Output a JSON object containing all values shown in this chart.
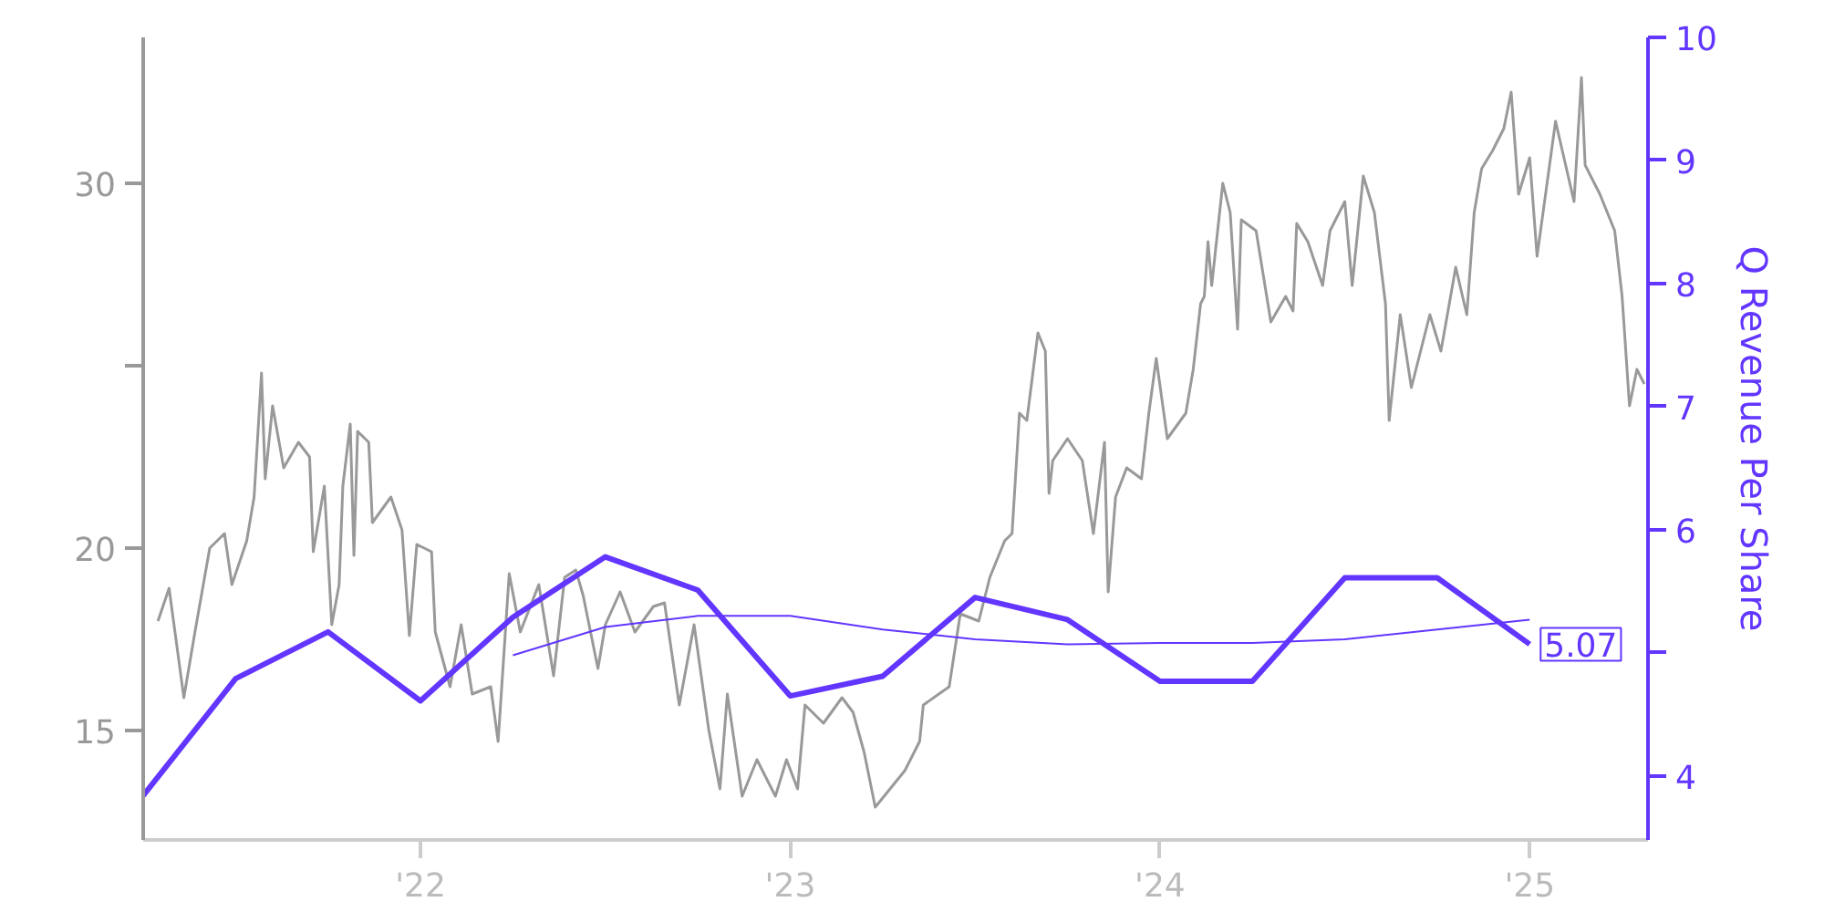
{
  "chart_data": {
    "type": "line",
    "xlim": [
      2021.25,
      2025.32
    ],
    "ylim": [
      12,
      34
    ],
    "y2lim": [
      3.48,
      10
    ],
    "xticks": [
      {
        "value": 2022,
        "label": "'22"
      },
      {
        "value": 2023,
        "label": "'23"
      },
      {
        "value": 2024,
        "label": "'24"
      },
      {
        "value": 2025,
        "label": "'25"
      }
    ],
    "yticks": [
      15,
      20,
      {
        "value": 25,
        "label": null
      },
      30
    ],
    "y2ticks": [
      4,
      {
        "value": 5,
        "label": null
      },
      6,
      7,
      8,
      9,
      10
    ],
    "y2label": "Q Revenue Per Share",
    "series": [
      {
        "color": "#999999",
        "x": [
          2021.29,
          2021.32,
          2021.36,
          2021.39,
          2021.43,
          2021.47,
          2021.49,
          2021.53,
          2021.55,
          2021.57,
          2021.58,
          2021.6,
          2021.63,
          2021.67,
          2021.7,
          2021.71,
          2021.74,
          2021.76,
          2021.78,
          2021.79,
          2021.81,
          2021.82,
          2021.83,
          2021.86,
          2021.87,
          2021.92,
          2021.95,
          2021.97,
          2021.99,
          2022.03,
          2022.04,
          2022.08,
          2022.11,
          2022.14,
          2022.19,
          2022.21,
          2022.24,
          2022.27,
          2022.32,
          2022.36,
          2022.39,
          2022.42,
          2022.44,
          2022.48,
          2022.5,
          2022.54,
          2022.58,
          2022.63,
          2022.66,
          2022.7,
          2022.74,
          2022.78,
          2022.81,
          2022.83,
          2022.87,
          2022.91,
          2022.96,
          2022.99,
          2023.02,
          2023.04,
          2023.09,
          2023.14,
          2023.17,
          2023.2,
          2023.23,
          2023.27,
          2023.31,
          2023.35,
          2023.36,
          2023.43,
          2023.46,
          2023.51,
          2023.54,
          2023.58,
          2023.6,
          2023.62,
          2023.64,
          2023.67,
          2023.69,
          2023.7,
          2023.71,
          2023.75,
          2023.79,
          2023.82,
          2023.85,
          2023.86,
          2023.88,
          2023.91,
          2023.95,
          2023.97,
          2023.99,
          2024.02,
          2024.07,
          2024.09,
          2024.11,
          2024.12,
          2024.13,
          2024.14,
          2024.17,
          2024.19,
          2024.21,
          2024.22,
          2024.26,
          2024.3,
          2024.34,
          2024.36,
          2024.37,
          2024.4,
          2024.44,
          2024.46,
          2024.5,
          2024.52,
          2024.55,
          2024.58,
          2024.61,
          2024.62,
          2024.65,
          2024.68,
          2024.73,
          2024.76,
          2024.8,
          2024.83,
          2024.85,
          2024.87,
          2024.9,
          2024.93,
          2024.95,
          2024.97,
          2025.0,
          2025.02,
          2025.07,
          2025.12,
          2025.14,
          2025.15,
          2025.19,
          2025.23,
          2025.25,
          2025.27,
          2025.29,
          2025.31
        ],
        "values": [
          18.0,
          18.9,
          15.9,
          17.7,
          20.0,
          20.4,
          19.0,
          20.2,
          21.4,
          24.8,
          21.9,
          23.9,
          22.2,
          22.9,
          22.5,
          19.9,
          21.7,
          17.9,
          19.0,
          21.7,
          23.4,
          19.8,
          23.2,
          22.9,
          20.7,
          21.4,
          20.5,
          17.6,
          20.1,
          19.9,
          17.7,
          16.2,
          17.9,
          16.0,
          16.2,
          14.7,
          19.3,
          17.7,
          19.0,
          16.5,
          19.2,
          19.4,
          18.7,
          16.7,
          17.9,
          18.8,
          17.7,
          18.4,
          18.5,
          15.7,
          17.9,
          15.0,
          13.4,
          16.0,
          13.2,
          14.2,
          13.2,
          14.2,
          13.4,
          15.7,
          15.2,
          15.9,
          15.5,
          14.4,
          12.9,
          13.4,
          13.9,
          14.7,
          15.7,
          16.2,
          18.2,
          18.0,
          19.2,
          20.2,
          20.4,
          23.7,
          23.5,
          25.9,
          25.4,
          21.5,
          22.4,
          23.0,
          22.4,
          20.4,
          22.9,
          18.8,
          21.4,
          22.2,
          21.9,
          23.7,
          25.2,
          23.0,
          23.7,
          24.9,
          26.7,
          26.9,
          28.4,
          27.2,
          30.0,
          29.2,
          26.0,
          29.0,
          28.7,
          26.2,
          26.9,
          26.5,
          28.9,
          28.4,
          27.2,
          28.7,
          29.5,
          27.2,
          30.2,
          29.2,
          26.7,
          23.5,
          26.4,
          24.4,
          26.4,
          25.4,
          27.7,
          26.4,
          29.2,
          30.4,
          30.9,
          31.5,
          32.5,
          29.7,
          30.7,
          28.0,
          31.7,
          29.5,
          32.9,
          30.5,
          29.7,
          28.7,
          26.9,
          23.9,
          24.9,
          24.5
        ]
      },
      {
        "color": "#6236ff",
        "axis": "y2",
        "x": [
          2021.25,
          2021.5,
          2021.75,
          2022.0,
          2022.25,
          2022.5,
          2022.75,
          2023.0,
          2023.25,
          2023.5,
          2023.75,
          2024.0,
          2024.25,
          2024.5,
          2024.75,
          2025.0
        ],
        "values": [
          3.84,
          4.79,
          5.17,
          4.61,
          5.29,
          5.78,
          5.51,
          4.65,
          4.81,
          5.45,
          5.27,
          4.77,
          4.77,
          5.61,
          5.61,
          5.07
        ],
        "value_labels": [
          null,
          null,
          null,
          null,
          null,
          null,
          null,
          null,
          null,
          null,
          null,
          null,
          null,
          null,
          null,
          "5.07"
        ]
      },
      {
        "color": "#6236ff",
        "axis": "y2",
        "x": [
          2022.25,
          2022.5,
          2022.75,
          2023.0,
          2023.25,
          2023.5,
          2023.75,
          2024.0,
          2024.25,
          2024.5,
          2024.75,
          2025.0
        ],
        "values": [
          4.98,
          5.21,
          5.3,
          5.3,
          5.19,
          5.11,
          5.07,
          5.08,
          5.08,
          5.11,
          5.19,
          5.27
        ]
      }
    ]
  }
}
